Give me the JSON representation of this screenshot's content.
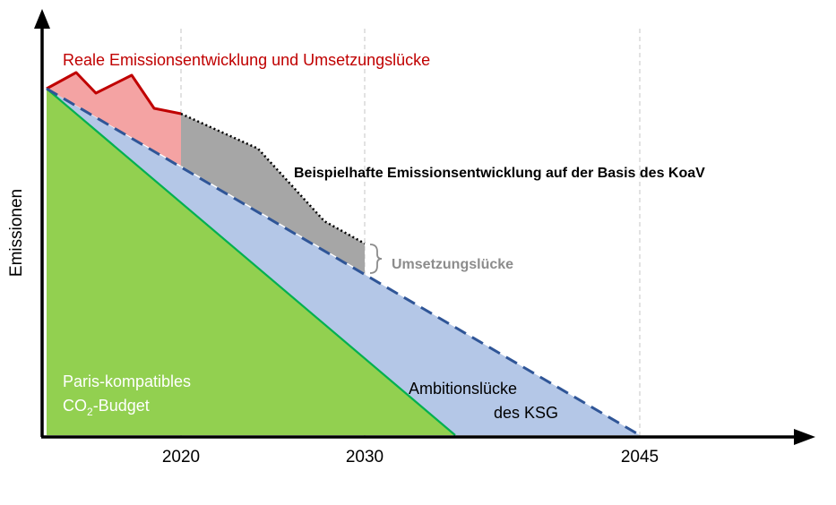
{
  "axes": {
    "y_label": "Emissionen",
    "x_ticks": [
      "2020",
      "2030",
      "2045"
    ]
  },
  "labels": {
    "real_emissions": "Reale Emissionsentwicklung und Umsetzungslücke",
    "example_path": "Beispielhafte Emissionsentwicklung auf der Basis des KoaV",
    "implementation_gap": "Umsetzungslücke",
    "paris_line1": "Paris-kompatibles",
    "paris_co": "CO",
    "paris_sub": "2",
    "paris_budget": "-Budget",
    "ambition_line1": "Ambitionslücke",
    "ambition_line2": "des KSG"
  },
  "colors": {
    "green_area": "#92d050",
    "green_line": "#00b050",
    "blue_area": "#b4c7e7",
    "blue_dash": "#2f5597",
    "red_area": "#f4a3a3",
    "red_line": "#c00000",
    "gray_area": "#a6a6a6",
    "gap_text": "#8c8c8c",
    "red_text": "#c00000"
  }
}
